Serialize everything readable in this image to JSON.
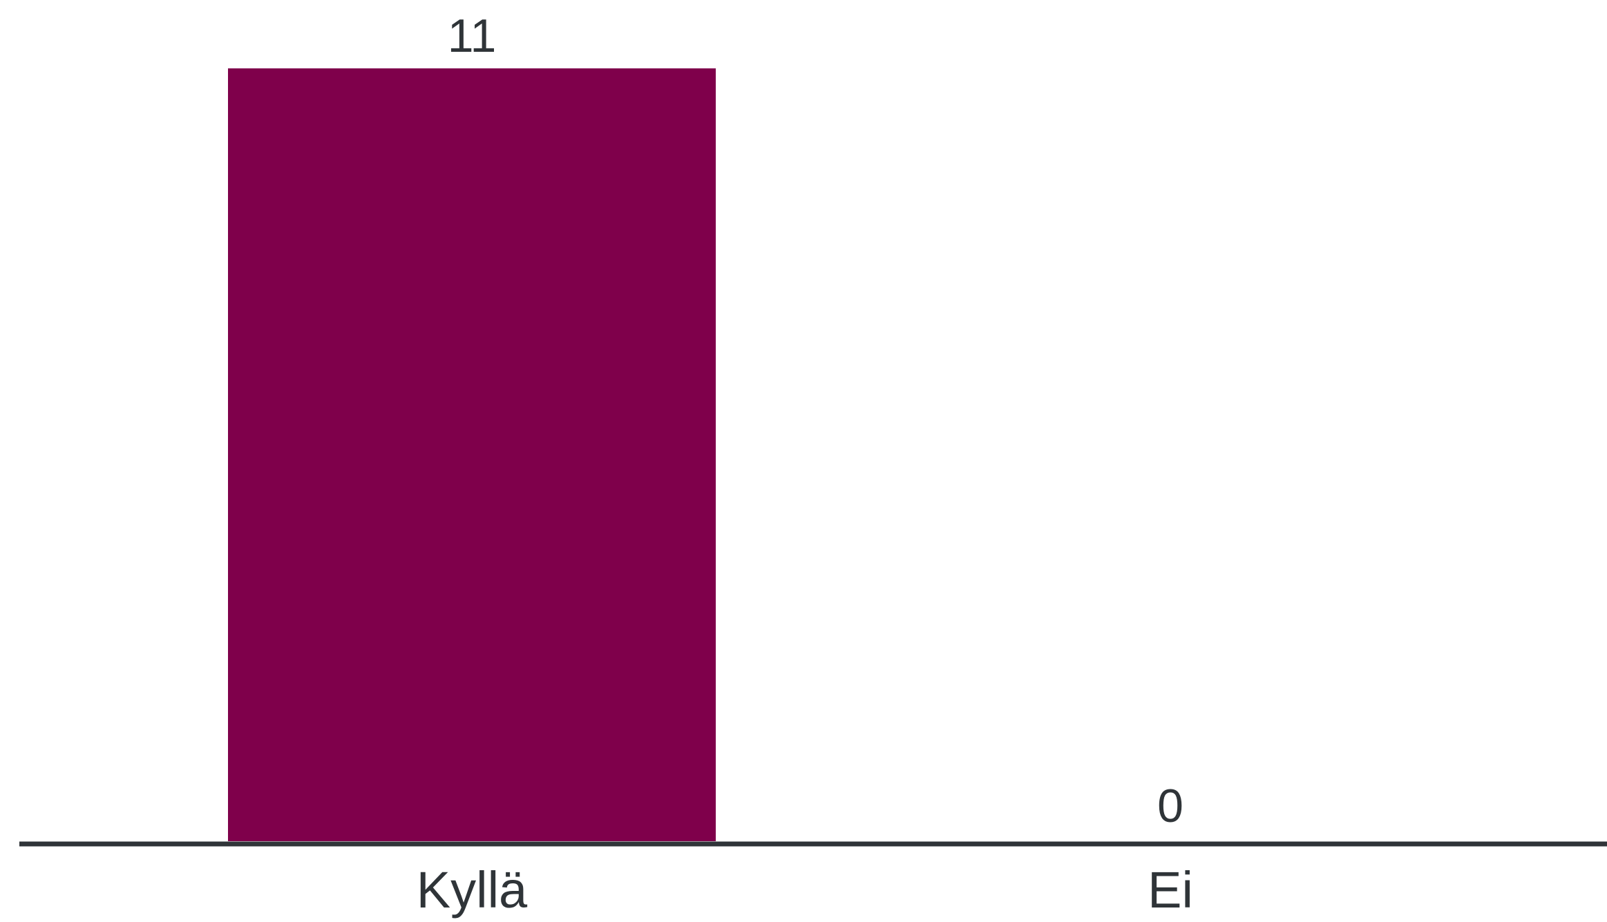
{
  "chart_data": {
    "type": "bar",
    "categories": [
      "Kyllä",
      "Ei"
    ],
    "values": [
      11,
      0
    ],
    "data_labels": [
      "11",
      "0"
    ],
    "title": "",
    "xlabel": "",
    "ylabel": "",
    "ylim": [
      0,
      11
    ],
    "grid": false,
    "legend": "none",
    "colors": {
      "bar": "#7f004b",
      "axis": "#2f3438",
      "text": "#2f3438",
      "background": "#ffffff"
    }
  }
}
